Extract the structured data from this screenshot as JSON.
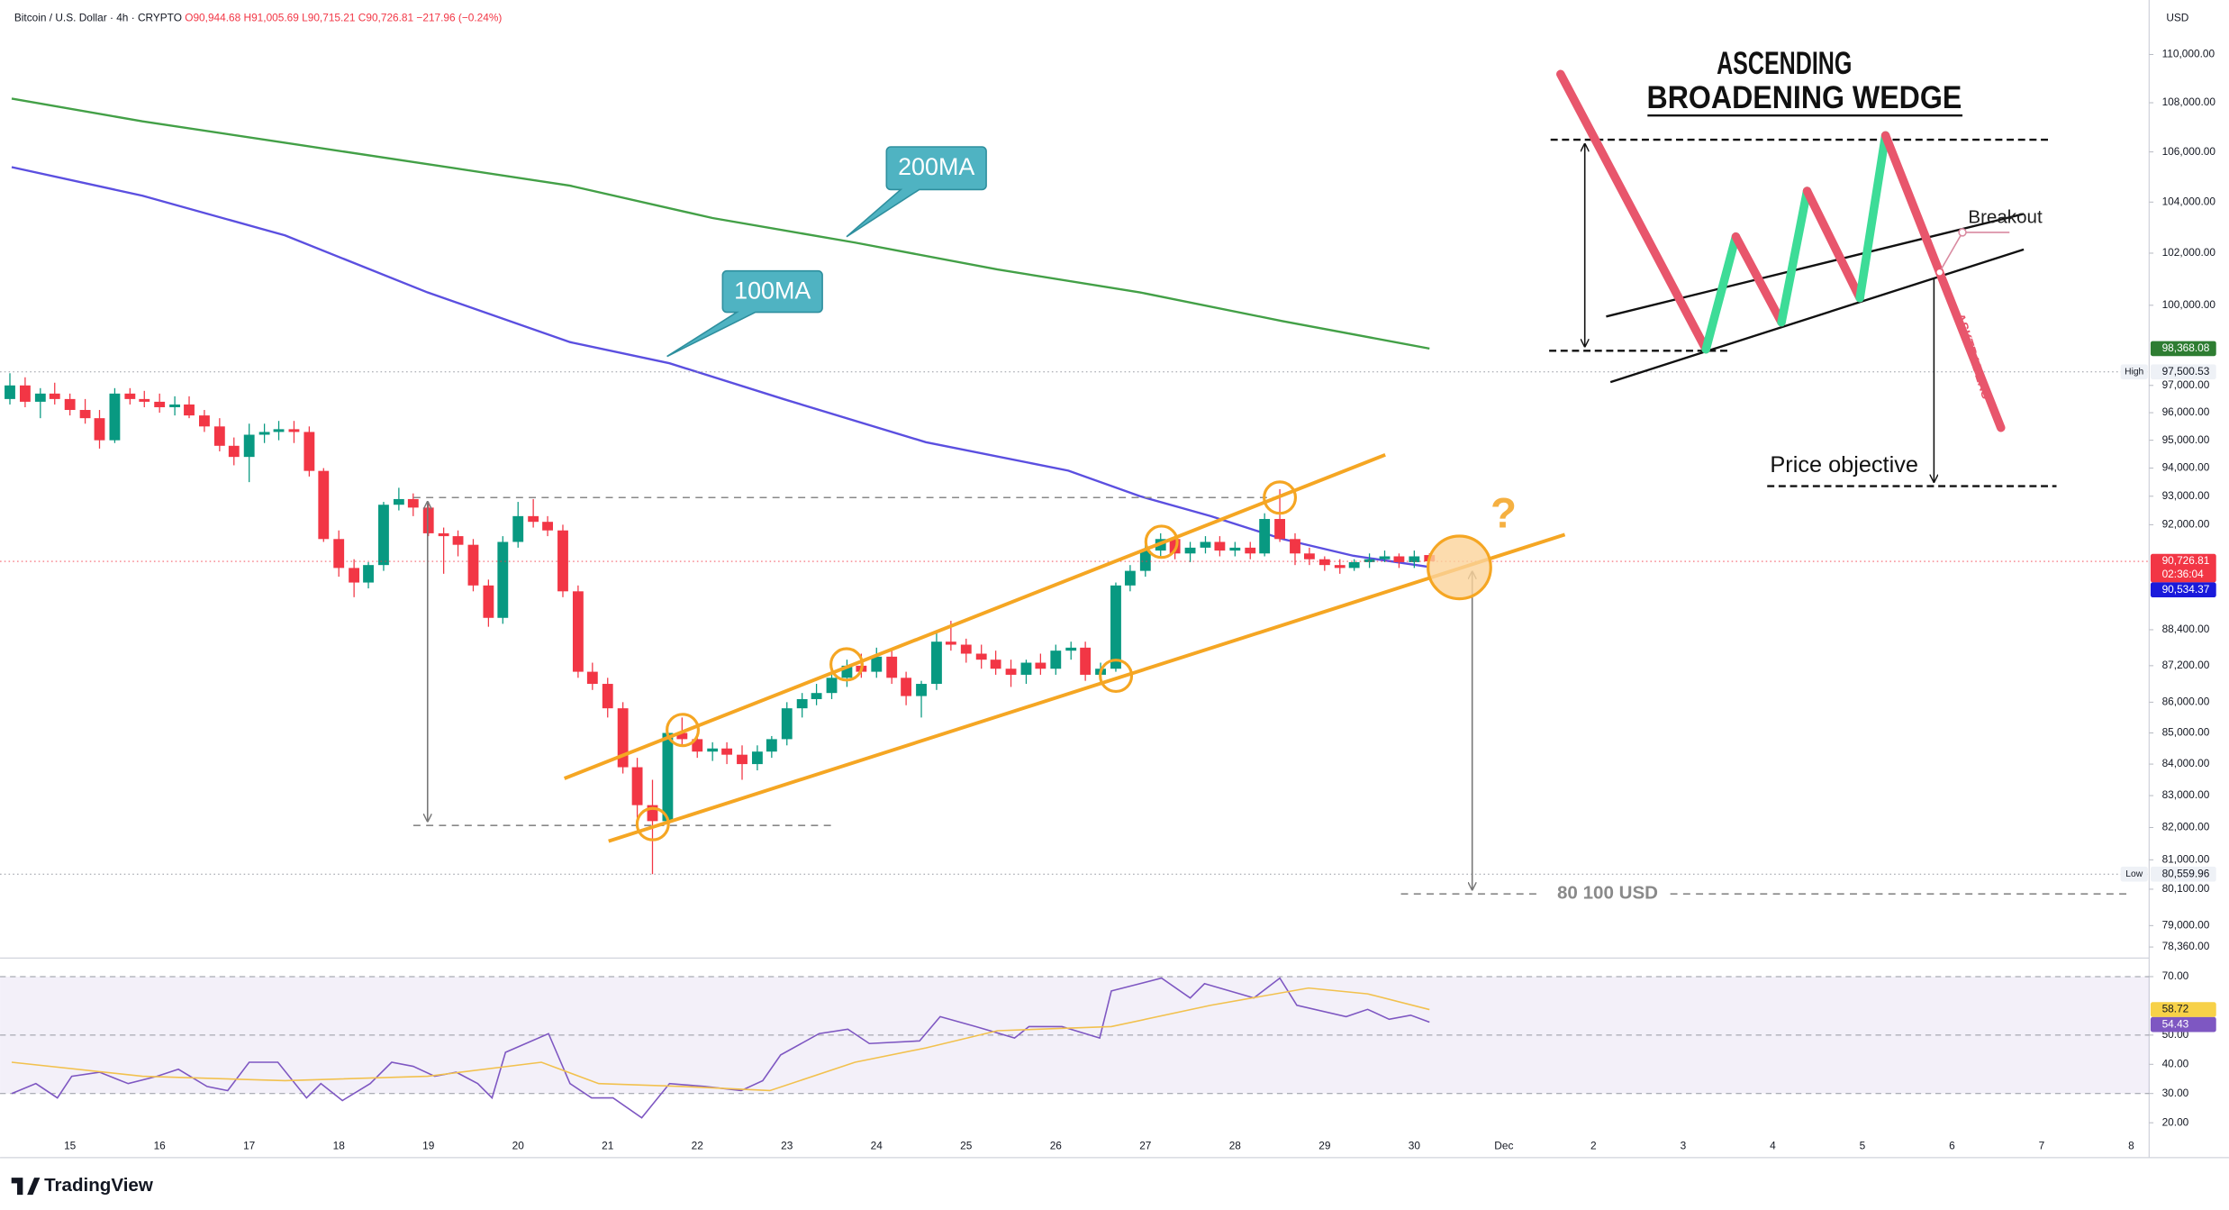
{
  "header": {
    "symbol": "Bitcoin / U.S. Dollar · 4h · CRYPTO",
    "ohlc": [
      "O90,944.68",
      "H91,005.69",
      "L90,715.21",
      "C90,726.81"
    ],
    "change": "−217.96 (−0.24%)",
    "currency": "USD"
  },
  "annotations": {
    "title_line1": "ASCENDING",
    "title_line2": "BROADENING WEDGE",
    "breakout": "Breakout",
    "watermark": "ASKTRADERS",
    "objective": "Price objective",
    "target": "80 100 USD",
    "question": "?"
  },
  "brand": "TradingView",
  "chart_data": [
    {
      "type": "candlestick",
      "log": true,
      "ylim": [
        78200,
        112300
      ],
      "xlim": [
        14.22,
        38.2
      ],
      "up_color": "#089981",
      "down_color": "#f23645",
      "yticks": [
        {
          "value": 110000,
          "label": "110,000.00"
        },
        {
          "value": 108000,
          "label": "108,000.00"
        },
        {
          "value": 106000,
          "label": "106,000.00"
        },
        {
          "value": 104000,
          "label": "104,000.00"
        },
        {
          "value": 102000,
          "label": "102,000.00"
        },
        {
          "value": 100000,
          "label": "100,000.00"
        },
        {
          "value": 97000,
          "label": "97,000.00"
        },
        {
          "value": 96000,
          "label": "96,000.00"
        },
        {
          "value": 95000,
          "label": "95,000.00"
        },
        {
          "value": 94000,
          "label": "94,000.00"
        },
        {
          "value": 93000,
          "label": "93,000.00"
        },
        {
          "value": 92000,
          "label": "92,000.00"
        },
        {
          "value": 88400,
          "label": "88,400.00"
        },
        {
          "value": 87200,
          "label": "87,200.00"
        },
        {
          "value": 86000,
          "label": "86,000.00"
        },
        {
          "value": 85000,
          "label": "85,000.00"
        },
        {
          "value": 84000,
          "label": "84,000.00"
        },
        {
          "value": 83000,
          "label": "83,000.00"
        },
        {
          "value": 82000,
          "label": "82,000.00"
        },
        {
          "value": 81000,
          "label": "81,000.00"
        },
        {
          "value": 80100,
          "label": "80,100.00"
        },
        {
          "value": 79000,
          "label": "79,000.00"
        },
        {
          "value": 78360,
          "label": "78,360.00"
        }
      ],
      "x": [
        14.33,
        14.5,
        14.67,
        14.83,
        15,
        15.17,
        15.33,
        15.5,
        15.67,
        15.83,
        16,
        16.17,
        16.33,
        16.5,
        16.67,
        16.83,
        17,
        17.17,
        17.33,
        17.5,
        17.67,
        17.83,
        18,
        18.17,
        18.33,
        18.5,
        18.67,
        18.83,
        19,
        19.17,
        19.33,
        19.5,
        19.67,
        19.83,
        20,
        20.17,
        20.33,
        20.5,
        20.67,
        20.83,
        21,
        21.17,
        21.33,
        21.5,
        21.67,
        21.83,
        22,
        22.17,
        22.33,
        22.5,
        22.67,
        22.83,
        23,
        23.17,
        23.33,
        23.5,
        23.67,
        23.83,
        24,
        24.17,
        24.33,
        24.5,
        24.67,
        24.83,
        25,
        25.17,
        25.33,
        25.5,
        25.67,
        25.83,
        26,
        26.17,
        26.33,
        26.5,
        26.67,
        26.83,
        27,
        27.17,
        27.33,
        27.5,
        27.67,
        27.83,
        28,
        28.17,
        28.33,
        28.5,
        28.67,
        28.83,
        29,
        29.17,
        29.33,
        29.5,
        29.67,
        29.83,
        30,
        30.17
      ],
      "ohlc": [
        [
          96500,
          97450,
          96300,
          97000
        ],
        [
          97000,
          97300,
          96200,
          96400
        ],
        [
          96400,
          96900,
          95800,
          96700
        ],
        [
          96700,
          97100,
          96300,
          96500
        ],
        [
          96500,
          96700,
          95900,
          96100
        ],
        [
          96100,
          96500,
          95600,
          95800
        ],
        [
          95800,
          96100,
          94700,
          95000
        ],
        [
          95000,
          96900,
          94900,
          96700
        ],
        [
          96700,
          96900,
          96300,
          96500
        ],
        [
          96500,
          96800,
          96200,
          96400
        ],
        [
          96400,
          96700,
          96000,
          96200
        ],
        [
          96200,
          96600,
          95900,
          96300
        ],
        [
          96300,
          96600,
          95800,
          95900
        ],
        [
          95900,
          96100,
          95300,
          95500
        ],
        [
          95500,
          95800,
          94600,
          94800
        ],
        [
          94800,
          95100,
          94100,
          94400
        ],
        [
          94400,
          95600,
          93500,
          95200
        ],
        [
          95200,
          95600,
          94900,
          95300
        ],
        [
          95300,
          95700,
          95000,
          95400
        ],
        [
          95400,
          95700,
          94900,
          95300
        ],
        [
          95300,
          95500,
          93700,
          93900
        ],
        [
          93900,
          94000,
          91400,
          91500
        ],
        [
          91500,
          91800,
          90200,
          90500
        ],
        [
          90500,
          90800,
          89500,
          90000
        ],
        [
          90000,
          90700,
          89800,
          90600
        ],
        [
          90600,
          92800,
          90400,
          92700
        ],
        [
          92700,
          93300,
          92500,
          92900
        ],
        [
          92900,
          93100,
          92300,
          92600
        ],
        [
          92600,
          92800,
          91600,
          91700
        ],
        [
          91700,
          91900,
          90300,
          91600
        ],
        [
          91600,
          91800,
          90900,
          91300
        ],
        [
          91300,
          91500,
          89700,
          89900
        ],
        [
          89900,
          90100,
          88500,
          88800
        ],
        [
          88800,
          91600,
          88600,
          91400
        ],
        [
          91400,
          92800,
          91200,
          92300
        ],
        [
          92300,
          92900,
          91900,
          92100
        ],
        [
          92100,
          92300,
          91600,
          91800
        ],
        [
          91800,
          92000,
          89500,
          89700
        ],
        [
          89700,
          89900,
          86800,
          87000
        ],
        [
          87000,
          87300,
          86400,
          86600
        ],
        [
          86600,
          86800,
          85500,
          85800
        ],
        [
          85800,
          86000,
          83700,
          83900
        ],
        [
          83900,
          84200,
          82300,
          82700
        ],
        [
          82700,
          83500,
          80560,
          82200
        ],
        [
          82200,
          85200,
          82000,
          85000
        ],
        [
          85000,
          85500,
          84600,
          84800
        ],
        [
          84800,
          85000,
          84200,
          84400
        ],
        [
          84400,
          84700,
          84100,
          84500
        ],
        [
          84500,
          84700,
          84000,
          84300
        ],
        [
          84300,
          84600,
          83500,
          84000
        ],
        [
          84000,
          84600,
          83800,
          84400
        ],
        [
          84400,
          84900,
          84200,
          84800
        ],
        [
          84800,
          86000,
          84600,
          85800
        ],
        [
          85800,
          86300,
          85500,
          86100
        ],
        [
          86100,
          86600,
          85900,
          86300
        ],
        [
          86300,
          87000,
          86100,
          86800
        ],
        [
          86800,
          87400,
          86500,
          87200
        ],
        [
          87200,
          87600,
          86800,
          87000
        ],
        [
          87000,
          87800,
          86800,
          87500
        ],
        [
          87500,
          87700,
          86600,
          86800
        ],
        [
          86800,
          87000,
          85900,
          86200
        ],
        [
          86200,
          86700,
          85500,
          86600
        ],
        [
          86600,
          88300,
          86400,
          88000
        ],
        [
          88000,
          88700,
          87700,
          87900
        ],
        [
          87900,
          88100,
          87300,
          87600
        ],
        [
          87600,
          87900,
          87100,
          87400
        ],
        [
          87400,
          87700,
          86900,
          87100
        ],
        [
          87100,
          87400,
          86500,
          86900
        ],
        [
          86900,
          87400,
          86600,
          87300
        ],
        [
          87300,
          87600,
          86900,
          87100
        ],
        [
          87100,
          87900,
          86900,
          87700
        ],
        [
          87700,
          88000,
          87400,
          87800
        ],
        [
          87800,
          88000,
          86700,
          86900
        ],
        [
          86900,
          87300,
          86600,
          87100
        ],
        [
          87100,
          90000,
          87000,
          89900
        ],
        [
          89900,
          90600,
          89700,
          90400
        ],
        [
          90400,
          91300,
          90200,
          91100
        ],
        [
          91100,
          91700,
          90900,
          91500
        ],
        [
          91500,
          91700,
          90800,
          91000
        ],
        [
          91000,
          91400,
          90700,
          91200
        ],
        [
          91200,
          91600,
          91000,
          91400
        ],
        [
          91400,
          91600,
          90900,
          91100
        ],
        [
          91100,
          91400,
          90900,
          91200
        ],
        [
          91200,
          91400,
          90800,
          91000
        ],
        [
          91000,
          92400,
          90900,
          92200
        ],
        [
          92200,
          93250,
          91400,
          91500
        ],
        [
          91500,
          91700,
          90600,
          91000
        ],
        [
          91000,
          91200,
          90600,
          90800
        ],
        [
          90800,
          90900,
          90400,
          90600
        ],
        [
          90600,
          90800,
          90300,
          90500
        ],
        [
          90500,
          90800,
          90400,
          90700
        ],
        [
          90700,
          91000,
          90500,
          90800
        ],
        [
          90800,
          91100,
          90700,
          90900
        ],
        [
          90900,
          91000,
          90500,
          90700
        ],
        [
          90700,
          91100,
          90500,
          90900
        ],
        [
          90944.68,
          91005.69,
          90715.21,
          90726.81
        ]
      ],
      "lines": [
        {
          "name": "200MA",
          "color": "#43a047",
          "x": [
            14.35,
            15.81,
            17.4,
            18.99,
            20.58,
            22.17,
            23.76,
            25.35,
            26.94,
            28.53,
            30.17
          ],
          "values": [
            108170,
            107240,
            106370,
            105510,
            104650,
            103370,
            102410,
            101370,
            100490,
            99400,
            98368.08
          ]
        },
        {
          "name": "100MA",
          "color": "#5b4fe0",
          "x": [
            14.35,
            15.81,
            17.4,
            18.99,
            20.58,
            21.69,
            22.97,
            24.55,
            26.14,
            26.94,
            27.73,
            28.53,
            29.32,
            30.17
          ],
          "values": [
            105390,
            104250,
            102690,
            100490,
            98610,
            97820,
            96490,
            94930,
            93910,
            93000,
            92300,
            91500,
            90920,
            90534.37
          ]
        }
      ],
      "price_labels": [
        {
          "value": 98368.08,
          "label": "98,368.08",
          "color": "#2e7d32",
          "text_color": "#ffffff"
        },
        {
          "value": 97500.53,
          "label": "97,500.53",
          "tag": "High",
          "color": "#eef1f6",
          "text_color": "#131722",
          "line": "#9598a1"
        },
        {
          "value": 90726.81,
          "label": "90,726.81",
          "sub": "02:36:04",
          "color": "#f23645",
          "text_color": "#ffffff",
          "line": "#f23645"
        },
        {
          "value": 90534.37,
          "label": "90,534.37",
          "color": "#1a1adb",
          "text_color": "#ffffff"
        },
        {
          "value": 80559.96,
          "label": "80,559.96",
          "tag": "Low",
          "color": "#eef1f6",
          "text_color": "#131722",
          "line": "#9598a1"
        }
      ]
    },
    {
      "type": "line",
      "ylim": [
        13.9,
        74.4
      ],
      "xlim": [
        14.22,
        38.2
      ],
      "levels": [
        30,
        50,
        70
      ],
      "band_color": "#7e57c2",
      "yticks": [
        {
          "value": 70,
          "label": "70.00"
        },
        {
          "value": 50,
          "label": "50.00"
        },
        {
          "value": 40,
          "label": "40.00"
        },
        {
          "value": 30,
          "label": "30.00"
        },
        {
          "value": 20,
          "label": "20.00"
        }
      ],
      "xticks": [
        15,
        16,
        17,
        18,
        19,
        20,
        21,
        22,
        23,
        24,
        25,
        26,
        27,
        28,
        29,
        30,
        {
          "value": 31,
          "label": "Dec"
        },
        {
          "value": 32,
          "label": "2"
        },
        {
          "value": 33,
          "label": "3"
        },
        {
          "value": 34,
          "label": "4"
        },
        {
          "value": 35,
          "label": "5"
        },
        {
          "value": 36,
          "label": "6"
        },
        {
          "value": 37,
          "label": "7"
        },
        {
          "value": 38,
          "label": "8"
        }
      ],
      "series": [
        {
          "color": "#7e57c2",
          "x": [
            14.35,
            14.62,
            14.86,
            15.02,
            15.33,
            15.65,
            15.97,
            16.21,
            16.53,
            16.76,
            17,
            17.32,
            17.64,
            17.8,
            18.04,
            18.35,
            18.59,
            18.83,
            19.07,
            19.31,
            19.55,
            19.71,
            19.86,
            20.34,
            20.58,
            20.82,
            21.06,
            21.38,
            21.69,
            22.09,
            22.49,
            22.73,
            22.93,
            23.36,
            23.68,
            23.92,
            24.48,
            24.71,
            25.11,
            25.54,
            25.7,
            26.07,
            26.49,
            26.62,
            26.94,
            27.18,
            27.5,
            27.66,
            28.21,
            28.5,
            28.69,
            29.24,
            29.48,
            29.72,
            29.96,
            30.17
          ],
          "values": [
            30,
            33.4,
            28.5,
            35.9,
            37.3,
            33.4,
            35.9,
            38.3,
            32.4,
            31,
            40.7,
            40.7,
            28.5,
            33.4,
            27.6,
            33.4,
            40.7,
            39.3,
            35.9,
            37.3,
            33.4,
            28.5,
            44.1,
            50.5,
            33.4,
            28.5,
            28.5,
            21.7,
            33.4,
            32.4,
            31,
            34.4,
            43.2,
            50.5,
            52,
            47.1,
            48,
            56.3,
            52.9,
            49,
            52.9,
            52.9,
            49,
            65.1,
            67.6,
            69.5,
            62.7,
            67.6,
            62.7,
            69.5,
            60.2,
            56.3,
            58.8,
            55.4,
            56.8,
            54.43
          ]
        },
        {
          "color": "#f2c14e",
          "x": [
            14.35,
            15.81,
            17.4,
            18.99,
            20.26,
            20.9,
            21.85,
            22.81,
            23.76,
            24.55,
            25.35,
            26.62,
            27.73,
            28.82,
            29.48,
            30.17
          ],
          "values": [
            40.7,
            35.9,
            34.4,
            35.9,
            40.7,
            33.4,
            32.4,
            31,
            40.7,
            45.6,
            51.5,
            52.9,
            60.2,
            66.1,
            64.1,
            58.72
          ]
        }
      ],
      "price_labels": [
        {
          "value": 58.72,
          "label": "58.72",
          "color": "#f7d148",
          "text_color": "#131722"
        },
        {
          "value": 54.43,
          "label": "54.43",
          "color": "#7e57c2",
          "text_color": "#ffffff"
        }
      ]
    }
  ]
}
